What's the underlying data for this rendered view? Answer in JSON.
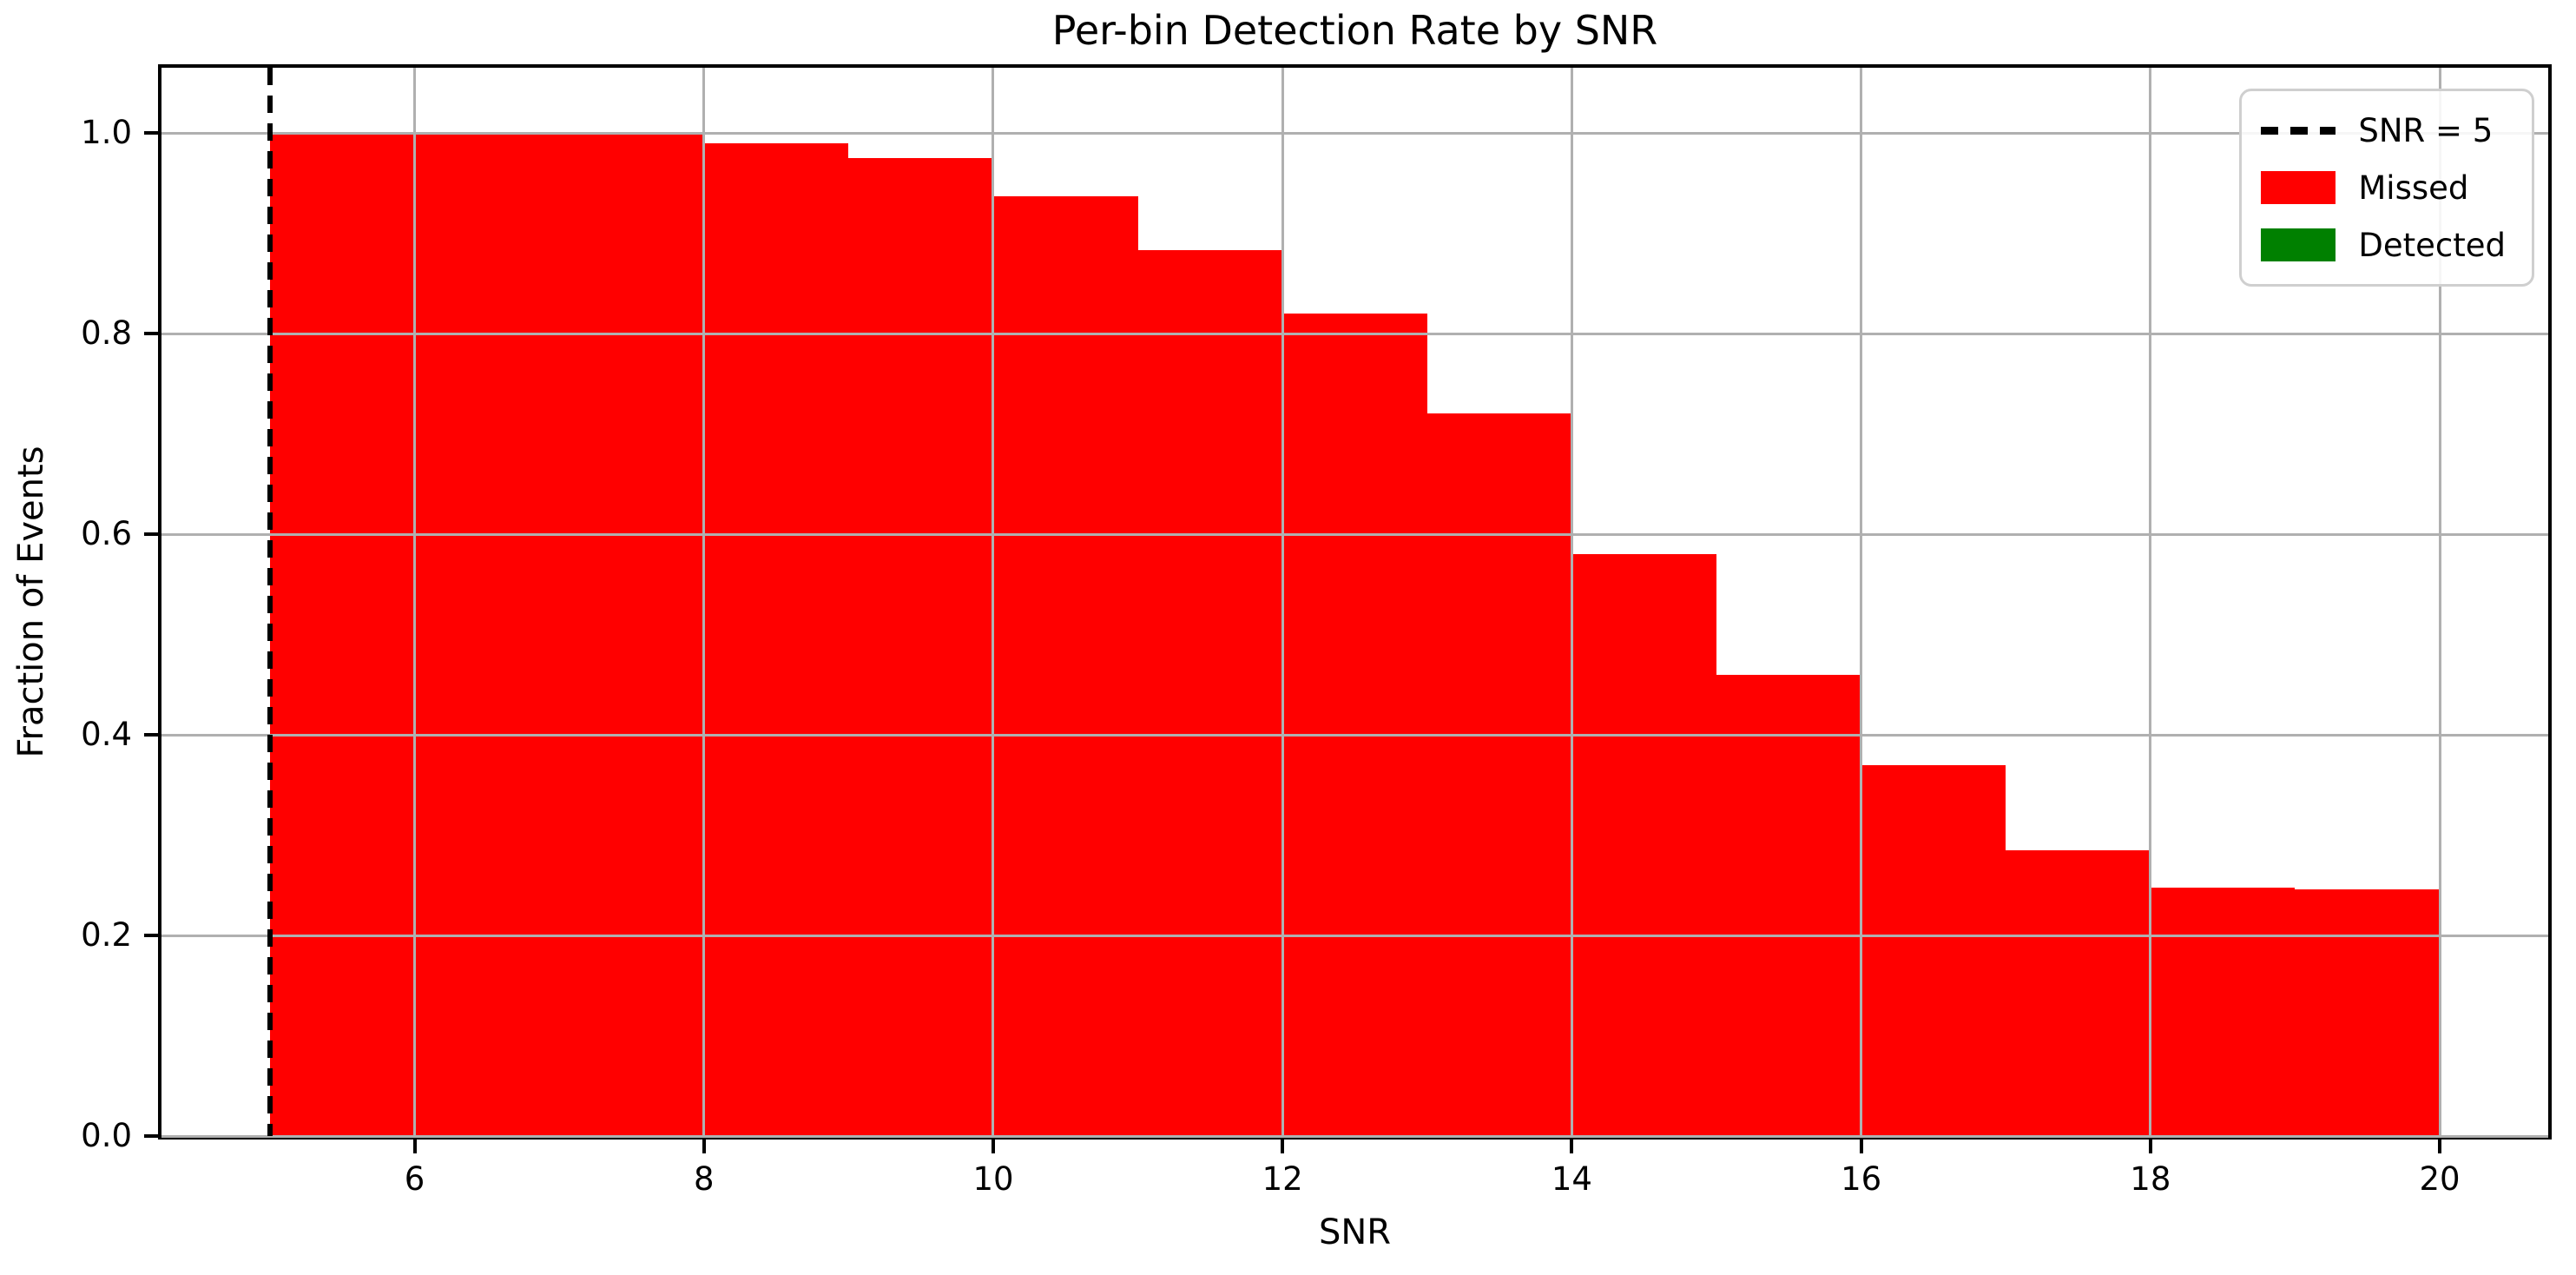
{
  "figure": {
    "title": "Per-bin Detection Rate by SNR",
    "xlabel": "SNR",
    "ylabel": "Fraction of Events"
  },
  "chart_data": {
    "type": "bar",
    "title": "Per-bin Detection Rate by SNR",
    "xlabel": "SNR",
    "ylabel": "Fraction of Events",
    "bin_edges": [
      5,
      6,
      7,
      8,
      9,
      10,
      11,
      12,
      13,
      14,
      15,
      16,
      17,
      18,
      19,
      20
    ],
    "series": [
      {
        "name": "Missed",
        "color": "#ff0000",
        "values": [
          1.0,
          1.0,
          0.998,
          0.99,
          0.975,
          0.937,
          0.883,
          0.82,
          0.72,
          0.58,
          0.46,
          0.37,
          0.285,
          0.248,
          0.246
        ]
      },
      {
        "name": "Detected",
        "color": "#008000",
        "values": [
          0,
          0,
          0,
          0,
          0,
          0,
          0,
          0,
          0,
          0,
          0,
          0,
          0,
          0,
          0
        ]
      }
    ],
    "vline": {
      "x": 5,
      "label": "SNR = 5",
      "color": "#000000",
      "style": "dashed"
    },
    "xlim": [
      4.25,
      20.75
    ],
    "ylim": [
      0,
      1.065
    ],
    "xticks": [
      6,
      8,
      10,
      12,
      14,
      16,
      18,
      20
    ],
    "ytick_labels": [
      "0.0",
      "0.2",
      "0.4",
      "0.6",
      "0.8",
      "1.0"
    ],
    "grid": true,
    "grid_color": "#b0b0b0",
    "legend_position": "upper right"
  },
  "legend": {
    "items": [
      {
        "label": "SNR = 5",
        "swatch": "dashed-line",
        "color": "#000000"
      },
      {
        "label": "Missed",
        "swatch": "rect",
        "color": "#ff0000"
      },
      {
        "label": "Detected",
        "swatch": "rect",
        "color": "#008000"
      }
    ]
  },
  "colors": {
    "missed_red": "#ff0000",
    "detected_green": "#008000",
    "gridline_gray": "#b0b0b0",
    "spine_black": "#000000",
    "background": "#ffffff"
  }
}
